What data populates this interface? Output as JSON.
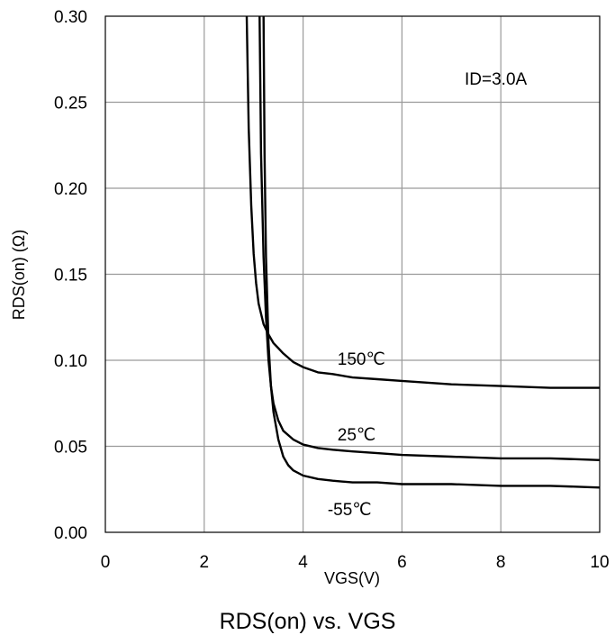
{
  "chart_data": {
    "type": "line",
    "title": "RDS(on) vs. VGS",
    "xlabel": "VGS(V)",
    "ylabel": "RDS(on) (Ω)",
    "xlim": [
      0,
      10
    ],
    "ylim": [
      0,
      0.3
    ],
    "x_ticks": [
      "0",
      "2",
      "4",
      "6",
      "8",
      "10"
    ],
    "y_ticks": [
      "0.00",
      "0.05",
      "0.10",
      "0.15",
      "0.20",
      "0.25",
      "0.30"
    ],
    "grid": true,
    "annotation": "ID=3.0A",
    "series": [
      {
        "name": "150℃",
        "x": [
          2.86,
          2.9,
          2.95,
          3.0,
          3.05,
          3.1,
          3.2,
          3.3,
          3.4,
          3.5,
          3.6,
          3.8,
          4.0,
          4.3,
          4.6,
          5.0,
          5.5,
          6.0,
          6.5,
          7.0,
          8.0,
          9.0,
          10.0
        ],
        "values": [
          0.3,
          0.235,
          0.19,
          0.162,
          0.145,
          0.133,
          0.121,
          0.115,
          0.11,
          0.107,
          0.104,
          0.099,
          0.096,
          0.093,
          0.092,
          0.09,
          0.089,
          0.088,
          0.087,
          0.086,
          0.085,
          0.084,
          0.084
        ]
      },
      {
        "name": "25℃",
        "x": [
          3.12,
          3.15,
          3.2,
          3.25,
          3.3,
          3.35,
          3.4,
          3.5,
          3.6,
          3.8,
          4.0,
          4.3,
          4.6,
          5.0,
          5.5,
          6.0,
          7.0,
          8.0,
          9.0,
          10.0
        ],
        "values": [
          0.3,
          0.22,
          0.16,
          0.125,
          0.1,
          0.085,
          0.075,
          0.065,
          0.059,
          0.054,
          0.051,
          0.049,
          0.048,
          0.047,
          0.046,
          0.045,
          0.044,
          0.043,
          0.043,
          0.042
        ]
      },
      {
        "name": "-55℃",
        "x": [
          3.2,
          3.22,
          3.25,
          3.3,
          3.35,
          3.4,
          3.5,
          3.6,
          3.7,
          3.8,
          4.0,
          4.3,
          4.6,
          5.0,
          5.5,
          6.0,
          7.0,
          8.0,
          9.0,
          10.0
        ],
        "values": [
          0.3,
          0.22,
          0.16,
          0.11,
          0.085,
          0.07,
          0.054,
          0.044,
          0.039,
          0.036,
          0.033,
          0.031,
          0.03,
          0.029,
          0.029,
          0.028,
          0.028,
          0.027,
          0.027,
          0.026
        ]
      }
    ]
  }
}
